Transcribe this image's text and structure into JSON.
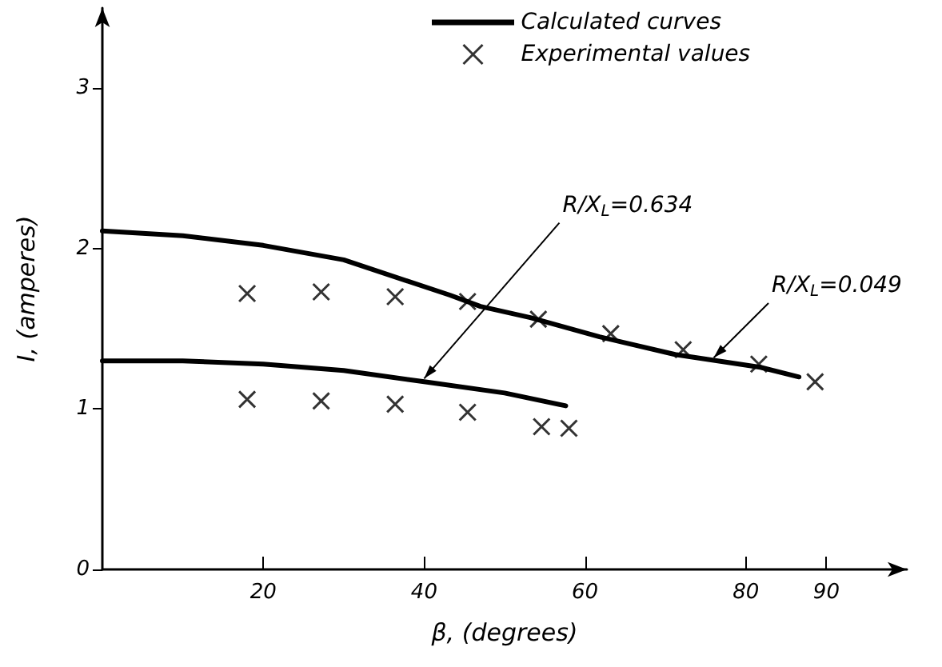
{
  "chart_data": {
    "type": "line",
    "xlabel": "β, (degrees)",
    "ylabel": "I, (amperes)",
    "xlim": [
      0,
      100
    ],
    "xticks": [
      20,
      40,
      60,
      80,
      90
    ],
    "ylim": [
      0,
      3.5
    ],
    "yticks": [
      0,
      1,
      2,
      3
    ],
    "grid": false,
    "legend": "top",
    "line_style": "solid",
    "series": [
      {
        "name": "Calculated curves",
        "color": "#000000",
        "marker": "none",
        "x": [
          0,
          10,
          20,
          30,
          43.2,
          47,
          53.2,
          61.8,
          71.2,
          81.8,
          86.6
        ],
        "values": [
          2.11,
          2.08,
          2.02,
          1.93,
          1.71,
          1.64,
          1.57,
          1.45,
          1.34,
          1.26,
          1.2
        ]
      },
      {
        "color": "#000000",
        "marker": "none",
        "x": [
          0,
          10,
          20,
          30,
          40,
          50,
          57.6
        ],
        "values": [
          1.3,
          1.3,
          1.28,
          1.24,
          1.17,
          1.1,
          1.02
        ]
      },
      {
        "name": "Experimental values",
        "type": "scatter",
        "color": "#000000",
        "marker": "cross",
        "x": [
          18,
          27.2,
          36.4,
          45.4,
          54.2,
          63.2,
          72.2,
          81.6,
          88.6,
          18,
          27.2,
          36.4,
          45.4,
          54.6,
          58
        ],
        "values": [
          1.72,
          1.73,
          1.7,
          1.67,
          1.56,
          1.47,
          1.37,
          1.28,
          1.17,
          1.06,
          1.05,
          1.03,
          0.98,
          0.89,
          0.88
        ]
      }
    ],
    "annotations": [
      {
        "text": "R/X$_{L}$=0.634",
        "x": 40,
        "y": 1.17
      },
      {
        "text": "R/X$_{L}$=0.049",
        "x": 76,
        "y": 1.3
      }
    ]
  }
}
